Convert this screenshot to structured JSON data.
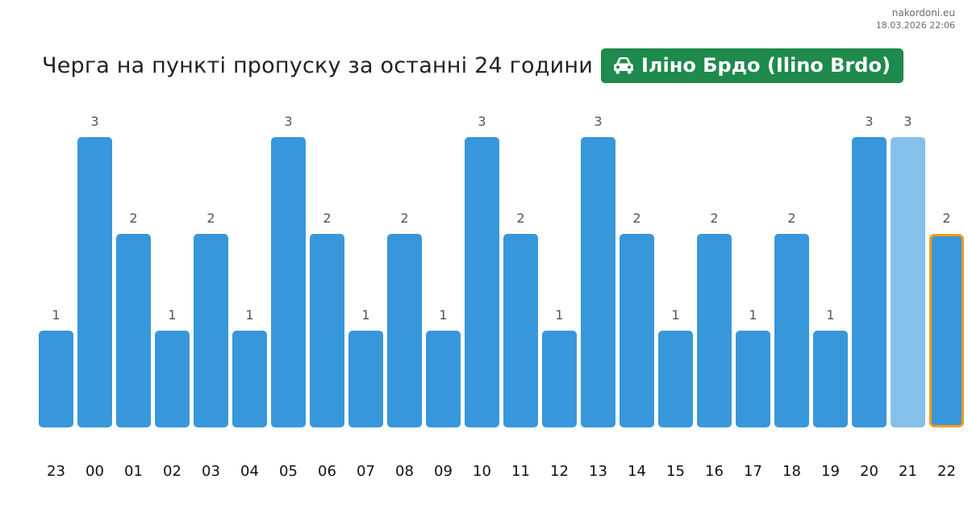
{
  "watermark": {
    "site": "nakordoni.eu",
    "timestamp": "18.03.2026 22:06"
  },
  "header": {
    "title": "Черга на пункті пропуску за останні 24 години",
    "badge_label": "Іліно Брдо (Ilino Brdo)",
    "badge_icon": "car-icon",
    "badge_color": "#1e8a4c"
  },
  "colors": {
    "bar": "#3897db",
    "bar_light": "#85c0ea",
    "highlight_border": "#f39c12",
    "value_label": "#555555",
    "axis_label": "#111111"
  },
  "chart_data": {
    "type": "bar",
    "title": "",
    "xlabel": "",
    "ylabel": "",
    "ylim": [
      0,
      3
    ],
    "grid": false,
    "categories": [
      "23",
      "00",
      "01",
      "02",
      "03",
      "04",
      "05",
      "06",
      "07",
      "08",
      "09",
      "10",
      "11",
      "12",
      "13",
      "14",
      "15",
      "16",
      "17",
      "18",
      "19",
      "20",
      "21",
      "22"
    ],
    "values": [
      1,
      3,
      2,
      1,
      2,
      1,
      3,
      2,
      1,
      2,
      1,
      3,
      2,
      1,
      3,
      2,
      1,
      2,
      1,
      2,
      1,
      3,
      3,
      2
    ],
    "light_category": "21",
    "highlight_category": "22"
  }
}
